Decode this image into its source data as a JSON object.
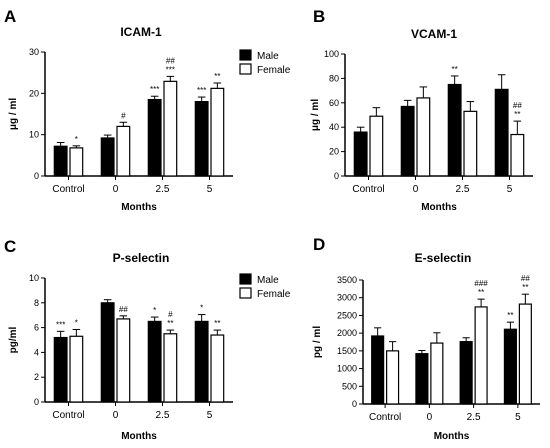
{
  "chart_data": [
    {
      "panel": "A",
      "type": "bar",
      "title": "ICAM-1",
      "xlabel": "Months",
      "ylabel": "μg / ml",
      "categories": [
        "Control",
        "0",
        "2.5",
        "5"
      ],
      "ylim": [
        0,
        30
      ],
      "yticks": [
        0,
        10,
        20,
        30
      ],
      "series": [
        {
          "name": "Male",
          "values": [
            7.2,
            9.2,
            18.5,
            18.0
          ],
          "errors": [
            0.9,
            0.7,
            0.8,
            1.1
          ],
          "annotations": [
            "",
            "",
            "***",
            "***"
          ]
        },
        {
          "name": "Female",
          "values": [
            6.8,
            12.0,
            22.9,
            21.2
          ],
          "errors": [
            0.5,
            1.0,
            1.2,
            1.3
          ],
          "annotations": [
            "*",
            "#",
            "##\n***",
            "**"
          ]
        }
      ],
      "legend": "right"
    },
    {
      "panel": "B",
      "type": "bar",
      "title": "VCAM-1",
      "xlabel": "Months",
      "ylabel": "μg / ml",
      "categories": [
        "Control",
        "0",
        "2.5",
        "5"
      ],
      "ylim": [
        0,
        100
      ],
      "yticks": [
        0,
        20,
        40,
        60,
        80,
        100
      ],
      "series": [
        {
          "name": "Male",
          "values": [
            36,
            57,
            75,
            71
          ],
          "errors": [
            4,
            5,
            7,
            12
          ],
          "annotations": [
            "",
            "",
            "**",
            ""
          ]
        },
        {
          "name": "Female",
          "values": [
            49,
            64,
            53,
            34
          ],
          "errors": [
            7,
            9,
            8,
            11
          ],
          "annotations": [
            "",
            "",
            "",
            "##\n**"
          ]
        }
      ]
    },
    {
      "panel": "C",
      "type": "bar",
      "title": "P-selectin",
      "xlabel": "Months",
      "ylabel": "pg/ml",
      "categories": [
        "Control",
        "0",
        "2.5",
        "5"
      ],
      "ylim": [
        0,
        10
      ],
      "yticks": [
        0,
        2,
        4,
        6,
        8,
        10
      ],
      "series": [
        {
          "name": "Male",
          "values": [
            5.2,
            8.0,
            6.5,
            6.5
          ],
          "errors": [
            0.5,
            0.25,
            0.35,
            0.55
          ],
          "annotations": [
            "***",
            "",
            "*",
            "*"
          ]
        },
        {
          "name": "Female",
          "values": [
            5.3,
            6.7,
            5.5,
            5.4
          ],
          "errors": [
            0.55,
            0.25,
            0.3,
            0.4
          ],
          "annotations": [
            "*",
            "##",
            "#\n**",
            "**"
          ]
        }
      ],
      "legend": "right"
    },
    {
      "panel": "D",
      "type": "bar",
      "title": "E-selectin",
      "xlabel": "Months",
      "ylabel": "pg / ml",
      "categories": [
        "Control",
        "0",
        "2.5",
        "5"
      ],
      "ylim": [
        0,
        3500
      ],
      "yticks": [
        0,
        500,
        1000,
        1500,
        2000,
        2500,
        3000,
        3500
      ],
      "series": [
        {
          "name": "Male",
          "values": [
            1920,
            1420,
            1760,
            2110
          ],
          "errors": [
            230,
            90,
            110,
            200
          ],
          "annotations": [
            "",
            "",
            "",
            "**"
          ]
        },
        {
          "name": "Female",
          "values": [
            1500,
            1720,
            2740,
            2820
          ],
          "errors": [
            260,
            290,
            220,
            280
          ],
          "annotations": [
            "",
            "",
            "###\n**",
            "##\n**"
          ]
        }
      ]
    }
  ],
  "colors": {
    "male_fill": "#000000",
    "female_fill": "#ffffff",
    "stroke": "#000000"
  }
}
